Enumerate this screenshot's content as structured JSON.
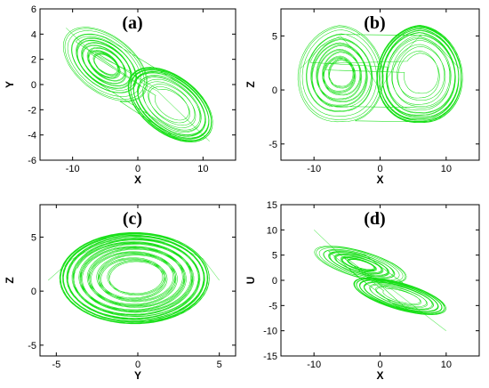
{
  "chart_data": [
    {
      "type": "line",
      "panel_label": "(a)",
      "xlabel": "X",
      "ylabel": "Y",
      "xlim": [
        -15,
        15
      ],
      "ylim": [
        -6,
        6
      ],
      "xticks": [
        -10,
        0,
        10
      ],
      "yticks": [
        -6,
        -4,
        -2,
        0,
        2,
        4,
        6
      ],
      "color": "#00dd00",
      "series": [
        {
          "x": [
            -11,
            -9,
            -7,
            -5,
            -3,
            -1,
            0,
            1,
            3,
            5,
            7,
            9,
            11
          ],
          "y": [
            4.5,
            3.5,
            2.5,
            2,
            1.5,
            1,
            0.5,
            0,
            -0.5,
            -1.5,
            -2.5,
            -3.5,
            -4.5
          ]
        }
      ]
    },
    {
      "type": "line",
      "panel_label": "(b)",
      "xlabel": "X",
      "ylabel": "Z",
      "xlim": [
        -15,
        15
      ],
      "ylim": [
        -6.5,
        7.5
      ],
      "xticks": [
        -10,
        0,
        10
      ],
      "yticks": [
        -5,
        0,
        5
      ],
      "color": "#00dd00",
      "series": [
        {
          "x": [
            -12,
            -9,
            -6,
            -3,
            0,
            3,
            6,
            9,
            12
          ],
          "y": [
            2,
            4,
            5,
            3,
            0,
            3,
            5,
            4,
            2
          ]
        }
      ]
    },
    {
      "type": "line",
      "panel_label": "(c)",
      "xlabel": "Y",
      "ylabel": "Z",
      "xlim": [
        -6,
        6
      ],
      "ylim": [
        -6,
        8
      ],
      "xticks": [
        -5,
        0,
        5
      ],
      "yticks": [
        -5,
        0,
        5
      ],
      "color": "#00dd00",
      "series": [
        {
          "x": [
            -5.5,
            -4,
            -2,
            0,
            2,
            4,
            5
          ],
          "y": [
            1,
            3,
            4.5,
            5,
            4.5,
            3,
            1
          ]
        }
      ]
    },
    {
      "type": "line",
      "panel_label": "(d)",
      "xlabel": "X",
      "ylabel": "U",
      "xlim": [
        -15,
        15
      ],
      "ylim": [
        -15,
        15
      ],
      "xticks": [
        -10,
        0,
        10
      ],
      "yticks": [
        -15,
        -10,
        -5,
        0,
        5,
        10,
        15
      ],
      "color": "#00dd00",
      "series": [
        {
          "x": [
            -10,
            -6,
            -2,
            2,
            6,
            10
          ],
          "y": [
            10,
            5,
            1,
            -2,
            -6,
            -10
          ]
        }
      ]
    }
  ]
}
